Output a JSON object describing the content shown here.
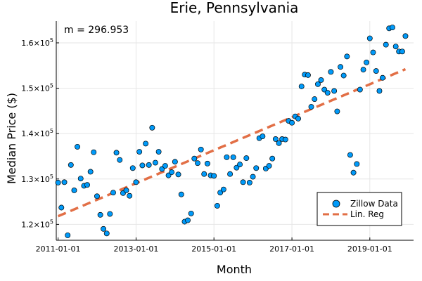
{
  "chart_data": {
    "type": "scatter",
    "title": "Erie, Pennsylvania",
    "xlabel": "Month",
    "ylabel": "Median Price ($)",
    "annotation": "m = 296.953",
    "x_ticks": [
      "2011-01-01",
      "2013-01-01",
      "2015-01-01",
      "2017-01-01",
      "2019-01-01"
    ],
    "y_ticks": [
      {
        "value": 120000,
        "base": "1.2×10",
        "exp": "5"
      },
      {
        "value": 130000,
        "base": "1.3×10",
        "exp": "5"
      },
      {
        "value": 140000,
        "base": "1.4×10",
        "exp": "5"
      },
      {
        "value": 150000,
        "base": "1.5×10",
        "exp": "5"
      },
      {
        "value": 160000,
        "base": "1.6×10",
        "exp": "5"
      }
    ],
    "xlim": [
      "2010-12-15",
      "2020-02-15"
    ],
    "ylim": [
      116500,
      164800
    ],
    "grid": true,
    "legend_placement": "bottom-right",
    "colors": {
      "scatter": "#009af9",
      "regression": "#e26f46",
      "grid": "#e6e6e6"
    },
    "series": [
      {
        "name": "Zillow Data",
        "kind": "scatter",
        "points": [
          [
            "2011-01-01",
            129200
          ],
          [
            "2011-02-01",
            123700
          ],
          [
            "2011-03-01",
            129300
          ],
          [
            "2011-04-01",
            117600
          ],
          [
            "2011-05-01",
            133100
          ],
          [
            "2011-06-01",
            127500
          ],
          [
            "2011-07-01",
            137100
          ],
          [
            "2011-08-01",
            130100
          ],
          [
            "2011-09-01",
            128500
          ],
          [
            "2011-10-01",
            128700
          ],
          [
            "2011-11-01",
            131600
          ],
          [
            "2011-12-01",
            135900
          ],
          [
            "2012-01-01",
            126200
          ],
          [
            "2012-02-01",
            122100
          ],
          [
            "2012-03-01",
            119000
          ],
          [
            "2012-04-01",
            118000
          ],
          [
            "2012-05-01",
            122300
          ],
          [
            "2012-06-01",
            127000
          ],
          [
            "2012-07-01",
            135800
          ],
          [
            "2012-08-01",
            134200
          ],
          [
            "2012-09-01",
            126900
          ],
          [
            "2012-10-01",
            127500
          ],
          [
            "2012-11-01",
            126300
          ],
          [
            "2012-12-01",
            132400
          ],
          [
            "2013-01-01",
            129300
          ],
          [
            "2013-02-01",
            136000
          ],
          [
            "2013-03-01",
            133000
          ],
          [
            "2013-04-01",
            137800
          ],
          [
            "2013-05-01",
            133100
          ],
          [
            "2013-06-01",
            141300
          ],
          [
            "2013-07-01",
            133600
          ],
          [
            "2013-08-01",
            136000
          ],
          [
            "2013-09-01",
            132200
          ],
          [
            "2013-10-01",
            132900
          ],
          [
            "2013-11-01",
            130800
          ],
          [
            "2013-12-01",
            131500
          ],
          [
            "2014-01-01",
            133800
          ],
          [
            "2014-02-01",
            131000
          ],
          [
            "2014-03-01",
            126600
          ],
          [
            "2014-04-01",
            120600
          ],
          [
            "2014-05-01",
            120900
          ],
          [
            "2014-06-01",
            122400
          ],
          [
            "2014-07-01",
            134500
          ],
          [
            "2014-08-01",
            133500
          ],
          [
            "2014-09-01",
            136500
          ],
          [
            "2014-10-01",
            131100
          ],
          [
            "2014-11-01",
            133400
          ],
          [
            "2014-12-01",
            130800
          ],
          [
            "2015-01-01",
            130700
          ],
          [
            "2015-02-01",
            124100
          ],
          [
            "2015-03-01",
            127000
          ],
          [
            "2015-04-01",
            127700
          ],
          [
            "2015-05-01",
            134800
          ],
          [
            "2015-06-01",
            131100
          ],
          [
            "2015-07-01",
            134800
          ],
          [
            "2015-08-01",
            132500
          ],
          [
            "2015-09-01",
            133200
          ],
          [
            "2015-10-01",
            129300
          ],
          [
            "2015-11-01",
            134600
          ],
          [
            "2015-12-01",
            129200
          ],
          [
            "2016-01-01",
            130500
          ],
          [
            "2016-02-01",
            132400
          ],
          [
            "2016-03-01",
            139000
          ],
          [
            "2016-04-01",
            139400
          ],
          [
            "2016-05-01",
            132300
          ],
          [
            "2016-06-01",
            132900
          ],
          [
            "2016-07-01",
            134500
          ],
          [
            "2016-08-01",
            138800
          ],
          [
            "2016-09-01",
            137900
          ],
          [
            "2016-10-01",
            138800
          ],
          [
            "2016-11-01",
            138700
          ],
          [
            "2016-12-01",
            142800
          ],
          [
            "2017-01-01",
            142400
          ],
          [
            "2017-02-01",
            143800
          ],
          [
            "2017-03-01",
            143300
          ],
          [
            "2017-04-01",
            150400
          ],
          [
            "2017-05-01",
            153000
          ],
          [
            "2017-06-01",
            152900
          ],
          [
            "2017-07-01",
            145900
          ],
          [
            "2017-08-01",
            147600
          ],
          [
            "2017-09-01",
            150900
          ],
          [
            "2017-10-01",
            151800
          ],
          [
            "2017-11-01",
            149700
          ],
          [
            "2017-12-01",
            149000
          ],
          [
            "2018-01-01",
            153600
          ],
          [
            "2018-02-01",
            149400
          ],
          [
            "2018-03-01",
            144900
          ],
          [
            "2018-04-01",
            154700
          ],
          [
            "2018-05-01",
            152800
          ],
          [
            "2018-06-01",
            157000
          ],
          [
            "2018-07-01",
            135300
          ],
          [
            "2018-08-01",
            131400
          ],
          [
            "2018-09-01",
            133300
          ],
          [
            "2018-10-01",
            149700
          ],
          [
            "2018-11-01",
            154100
          ],
          [
            "2018-12-01",
            155700
          ],
          [
            "2019-01-01",
            161000
          ],
          [
            "2019-02-01",
            157900
          ],
          [
            "2019-03-01",
            153800
          ],
          [
            "2019-04-01",
            149400
          ],
          [
            "2019-05-01",
            152300
          ],
          [
            "2019-06-01",
            159600
          ],
          [
            "2019-07-01",
            163200
          ],
          [
            "2019-08-01",
            163400
          ],
          [
            "2019-09-01",
            159200
          ],
          [
            "2019-10-01",
            158100
          ],
          [
            "2019-11-01",
            158100
          ],
          [
            "2019-12-01",
            161500
          ]
        ]
      },
      {
        "name": "Lin. Reg",
        "kind": "line",
        "points": [
          [
            "2011-01-01",
            121800
          ],
          [
            "2019-12-01",
            154200
          ]
        ]
      }
    ]
  }
}
